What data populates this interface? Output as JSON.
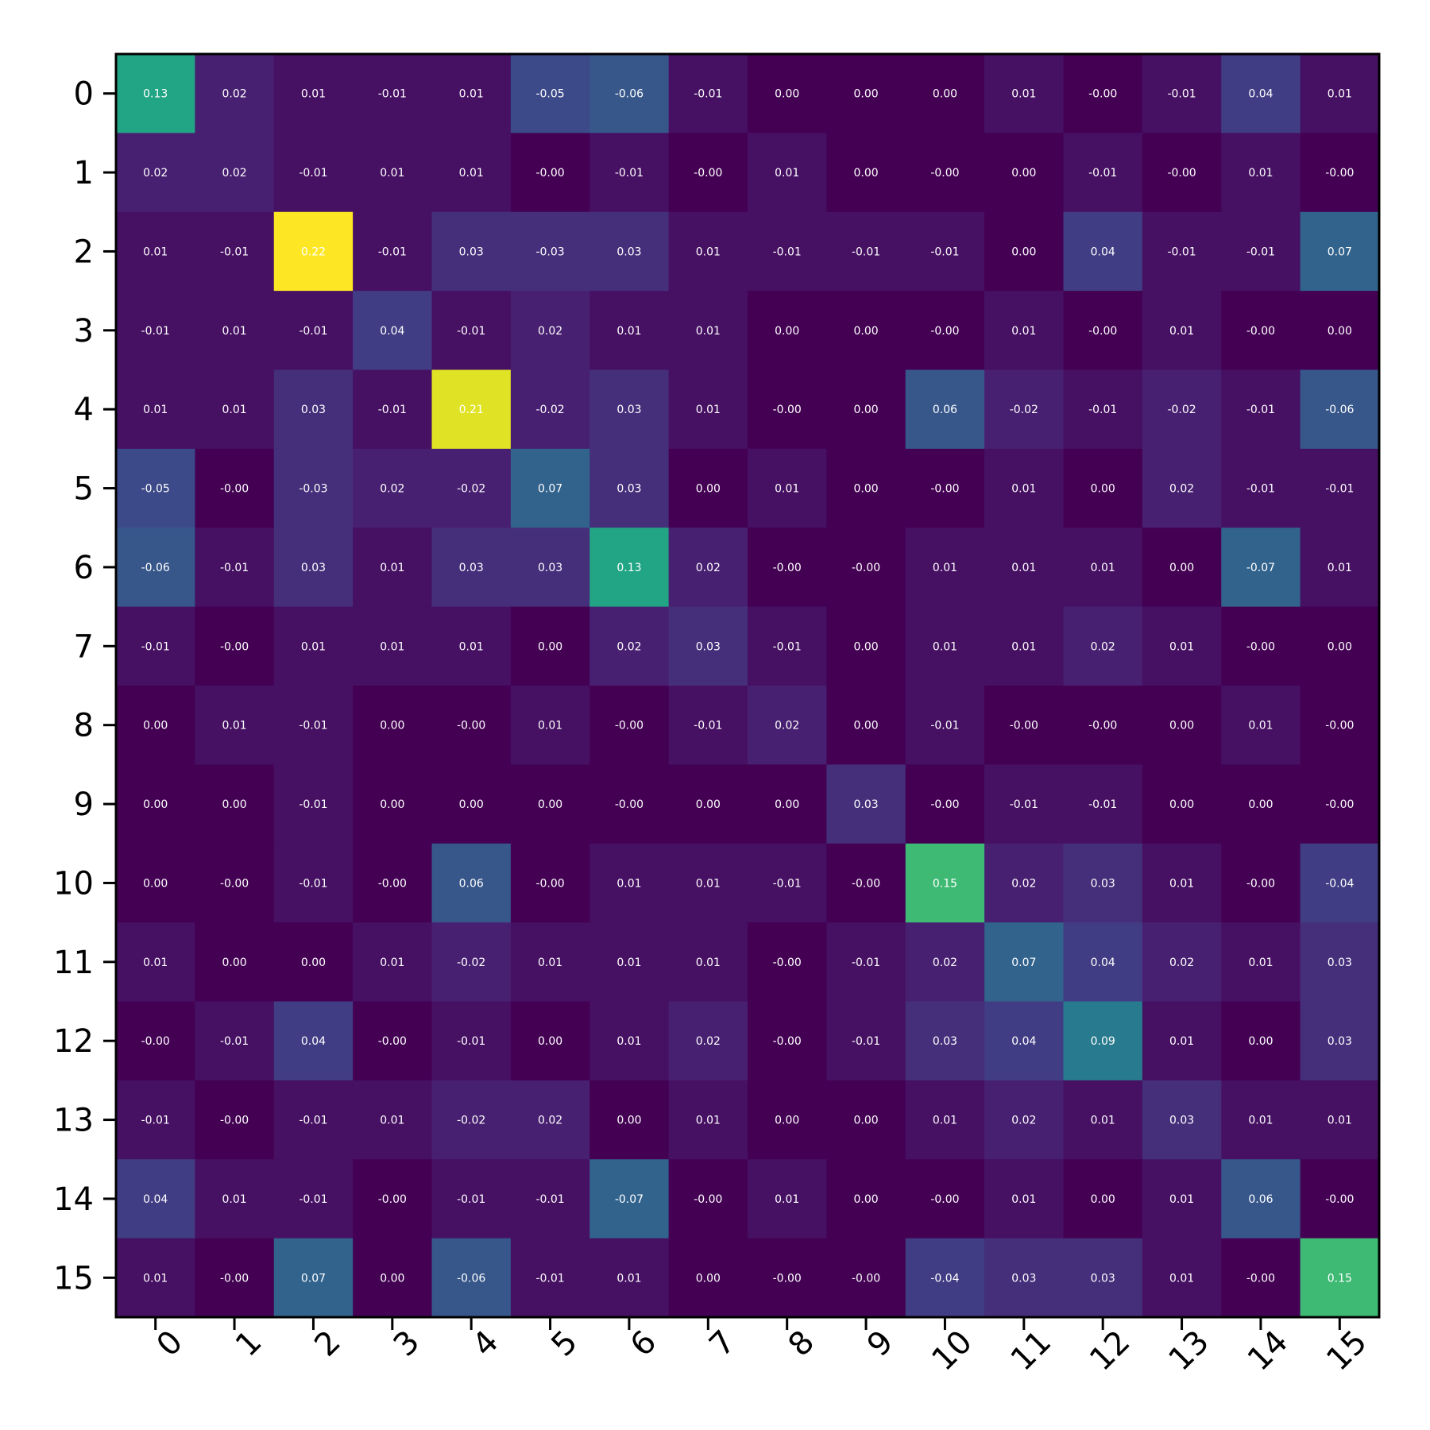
{
  "chart_data": {
    "type": "heatmap",
    "title": "",
    "xlabel": "",
    "ylabel": "",
    "x_tick_labels": [
      "0",
      "1",
      "2",
      "3",
      "4",
      "5",
      "6",
      "7",
      "8",
      "9",
      "10",
      "11",
      "12",
      "13",
      "14",
      "15"
    ],
    "y_tick_labels": [
      "0",
      "1",
      "2",
      "3",
      "4",
      "5",
      "6",
      "7",
      "8",
      "9",
      "10",
      "11",
      "12",
      "13",
      "14",
      "15"
    ],
    "colormap": "viridis",
    "value_range": [
      -0.07,
      0.22
    ],
    "cell_labels": [
      [
        "0.13",
        "0.02",
        "0.01",
        "-0.01",
        "0.01",
        "-0.05",
        "-0.06",
        "-0.01",
        "0.00",
        "0.00",
        "0.00",
        "0.01",
        "-0.00",
        "-0.01",
        "0.04",
        "0.01"
      ],
      [
        "0.02",
        "0.02",
        "-0.01",
        "0.01",
        "0.01",
        "-0.00",
        "-0.01",
        "-0.00",
        "0.01",
        "0.00",
        "-0.00",
        "0.00",
        "-0.01",
        "-0.00",
        "0.01",
        "-0.00"
      ],
      [
        "0.01",
        "-0.01",
        "0.22",
        "-0.01",
        "0.03",
        "-0.03",
        "0.03",
        "0.01",
        "-0.01",
        "-0.01",
        "-0.01",
        "0.00",
        "0.04",
        "-0.01",
        "-0.01",
        "0.07"
      ],
      [
        "-0.01",
        "0.01",
        "-0.01",
        "0.04",
        "-0.01",
        "0.02",
        "0.01",
        "0.01",
        "0.00",
        "0.00",
        "-0.00",
        "0.01",
        "-0.00",
        "0.01",
        "-0.00",
        "0.00"
      ],
      [
        "0.01",
        "0.01",
        "0.03",
        "-0.01",
        "0.21",
        "-0.02",
        "0.03",
        "0.01",
        "-0.00",
        "0.00",
        "0.06",
        "-0.02",
        "-0.01",
        "-0.02",
        "-0.01",
        "-0.06"
      ],
      [
        "-0.05",
        "-0.00",
        "-0.03",
        "0.02",
        "-0.02",
        "0.07",
        "0.03",
        "0.00",
        "0.01",
        "0.00",
        "-0.00",
        "0.01",
        "0.00",
        "0.02",
        "-0.01",
        "-0.01"
      ],
      [
        "-0.06",
        "-0.01",
        "0.03",
        "0.01",
        "0.03",
        "0.03",
        "0.13",
        "0.02",
        "-0.00",
        "-0.00",
        "0.01",
        "0.01",
        "0.01",
        "0.00",
        "-0.07",
        "0.01"
      ],
      [
        "-0.01",
        "-0.00",
        "0.01",
        "0.01",
        "0.01",
        "0.00",
        "0.02",
        "0.03",
        "-0.01",
        "0.00",
        "0.01",
        "0.01",
        "0.02",
        "0.01",
        "-0.00",
        "0.00"
      ],
      [
        "0.00",
        "0.01",
        "-0.01",
        "0.00",
        "-0.00",
        "0.01",
        "-0.00",
        "-0.01",
        "0.02",
        "0.00",
        "-0.01",
        "-0.00",
        "-0.00",
        "0.00",
        "0.01",
        "-0.00"
      ],
      [
        "0.00",
        "0.00",
        "-0.01",
        "0.00",
        "0.00",
        "0.00",
        "-0.00",
        "0.00",
        "0.00",
        "0.03",
        "-0.00",
        "-0.01",
        "-0.01",
        "0.00",
        "0.00",
        "-0.00"
      ],
      [
        "0.00",
        "-0.00",
        "-0.01",
        "-0.00",
        "0.06",
        "-0.00",
        "0.01",
        "0.01",
        "-0.01",
        "-0.00",
        "0.15",
        "0.02",
        "0.03",
        "0.01",
        "-0.00",
        "-0.04"
      ],
      [
        "0.01",
        "0.00",
        "0.00",
        "0.01",
        "-0.02",
        "0.01",
        "0.01",
        "0.01",
        "-0.00",
        "-0.01",
        "0.02",
        "0.07",
        "0.04",
        "0.02",
        "0.01",
        "0.03"
      ],
      [
        "-0.00",
        "-0.01",
        "0.04",
        "-0.00",
        "-0.01",
        "0.00",
        "0.01",
        "0.02",
        "-0.00",
        "-0.01",
        "0.03",
        "0.04",
        "0.09",
        "0.01",
        "0.00",
        "0.03"
      ],
      [
        "-0.01",
        "-0.00",
        "-0.01",
        "0.01",
        "-0.02",
        "0.02",
        "0.00",
        "0.01",
        "0.00",
        "0.00",
        "0.01",
        "0.02",
        "0.01",
        "0.03",
        "0.01",
        "0.01"
      ],
      [
        "0.04",
        "0.01",
        "-0.01",
        "-0.00",
        "-0.01",
        "-0.01",
        "-0.07",
        "-0.00",
        "0.01",
        "0.00",
        "-0.00",
        "0.01",
        "0.00",
        "0.01",
        "0.06",
        "-0.00"
      ],
      [
        "0.01",
        "-0.00",
        "0.07",
        "0.00",
        "-0.06",
        "-0.01",
        "0.01",
        "0.00",
        "-0.00",
        "-0.00",
        "-0.04",
        "0.03",
        "0.03",
        "0.01",
        "-0.00",
        "0.15"
      ]
    ],
    "colorscale_magnitude": true,
    "grid": false,
    "legend": "none"
  }
}
